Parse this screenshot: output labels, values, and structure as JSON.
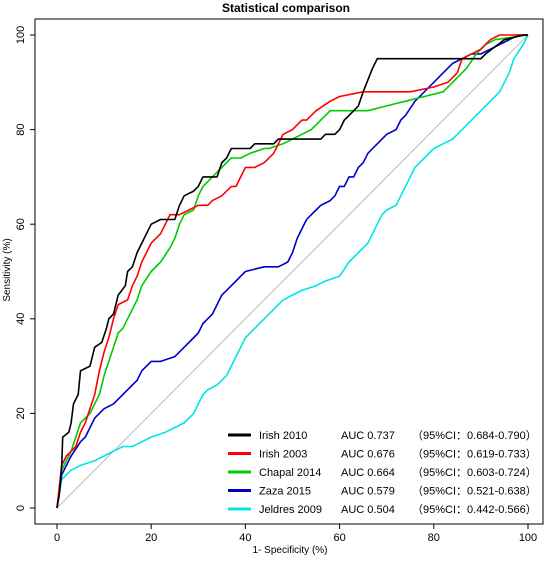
{
  "chart_data": {
    "type": "line",
    "title": "Statistical comparison",
    "xlabel": "1- Specificity (%)",
    "ylabel": "Sensitivity (%)",
    "xlim": [
      0,
      100
    ],
    "ylim": [
      0,
      100
    ],
    "xticks": [
      "0",
      "20",
      "40",
      "60",
      "80",
      "100"
    ],
    "yticks": [
      "0",
      "20",
      "40",
      "60",
      "80",
      "100"
    ],
    "grid": false,
    "legend_position": "bottom-right",
    "reference_line": {
      "from": [
        0,
        0
      ],
      "to": [
        100,
        100
      ],
      "color": "#bbbbbb"
    },
    "series": [
      {
        "name": "Irish 2010",
        "auc_text": "AUC 0.737",
        "ci_text": "（95%CI：0.684-0.790）",
        "color": "#000000",
        "points": [
          [
            0,
            0
          ],
          [
            0.5,
            3
          ],
          [
            1,
            9
          ],
          [
            1.2,
            15
          ],
          [
            2.5,
            16
          ],
          [
            3,
            18
          ],
          [
            3.5,
            22
          ],
          [
            4.5,
            24
          ],
          [
            5,
            29
          ],
          [
            7,
            30
          ],
          [
            8,
            34
          ],
          [
            9.5,
            35
          ],
          [
            10.5,
            38
          ],
          [
            11,
            40
          ],
          [
            12,
            41
          ],
          [
            13,
            45
          ],
          [
            14.5,
            47
          ],
          [
            15,
            50
          ],
          [
            16,
            51
          ],
          [
            17,
            54
          ],
          [
            18,
            56
          ],
          [
            19,
            58
          ],
          [
            20,
            60
          ],
          [
            22,
            61
          ],
          [
            25,
            61
          ],
          [
            26,
            64
          ],
          [
            27,
            66
          ],
          [
            29,
            67
          ],
          [
            30,
            68
          ],
          [
            31,
            70
          ],
          [
            34,
            70
          ],
          [
            35,
            73
          ],
          [
            36,
            74
          ],
          [
            37,
            76
          ],
          [
            41,
            76
          ],
          [
            42,
            77
          ],
          [
            46,
            77
          ],
          [
            47,
            78
          ],
          [
            56,
            78
          ],
          [
            57,
            79
          ],
          [
            59,
            79
          ],
          [
            60,
            80
          ],
          [
            61,
            82
          ],
          [
            62,
            83
          ],
          [
            63,
            84
          ],
          [
            64,
            85
          ],
          [
            65,
            88
          ],
          [
            67,
            93
          ],
          [
            68,
            95
          ],
          [
            90,
            95
          ],
          [
            91,
            96
          ],
          [
            95,
            99
          ],
          [
            99,
            100
          ],
          [
            100,
            100
          ]
        ]
      },
      {
        "name": "Irish 2003",
        "auc_text": "AUC 0.676",
        "ci_text": "（95%CI：0.619-0.733）",
        "color": "#ff0000",
        "points": [
          [
            0,
            0
          ],
          [
            1,
            9
          ],
          [
            2,
            11
          ],
          [
            4,
            13
          ],
          [
            5,
            16
          ],
          [
            6,
            18
          ],
          [
            8,
            24
          ],
          [
            9,
            29
          ],
          [
            10,
            33
          ],
          [
            11,
            36
          ],
          [
            12,
            40
          ],
          [
            13,
            43
          ],
          [
            15,
            44
          ],
          [
            16,
            47
          ],
          [
            17,
            49
          ],
          [
            18,
            52
          ],
          [
            19,
            54
          ],
          [
            20,
            56
          ],
          [
            22,
            58
          ],
          [
            23,
            60
          ],
          [
            24,
            62
          ],
          [
            26,
            62
          ],
          [
            28,
            63
          ],
          [
            30,
            64
          ],
          [
            32,
            64
          ],
          [
            33,
            65
          ],
          [
            35,
            66
          ],
          [
            37,
            68
          ],
          [
            38,
            68
          ],
          [
            40,
            72
          ],
          [
            42,
            72
          ],
          [
            44,
            73
          ],
          [
            46,
            75
          ],
          [
            47,
            77
          ],
          [
            48,
            79
          ],
          [
            50,
            80
          ],
          [
            52,
            82
          ],
          [
            53,
            82
          ],
          [
            55,
            84
          ],
          [
            58,
            86
          ],
          [
            60,
            87
          ],
          [
            65,
            88
          ],
          [
            70,
            88
          ],
          [
            75,
            88
          ],
          [
            80,
            89
          ],
          [
            83,
            90
          ],
          [
            85,
            92
          ],
          [
            86,
            95
          ],
          [
            88,
            96
          ],
          [
            90,
            97
          ],
          [
            92,
            99
          ],
          [
            94,
            100
          ],
          [
            100,
            100
          ]
        ]
      },
      {
        "name": "Chapal 2014",
        "auc_text": "AUC 0.664",
        "ci_text": "（95%CI：0.603-0.724）",
        "color": "#00cc00",
        "points": [
          [
            0,
            0
          ],
          [
            1,
            8
          ],
          [
            3,
            12
          ],
          [
            5,
            18
          ],
          [
            7,
            20
          ],
          [
            8,
            22
          ],
          [
            9,
            24
          ],
          [
            10,
            28
          ],
          [
            11,
            31
          ],
          [
            12,
            34
          ],
          [
            13,
            37
          ],
          [
            14,
            38
          ],
          [
            15,
            40
          ],
          [
            16,
            42
          ],
          [
            17,
            44
          ],
          [
            18,
            47
          ],
          [
            20,
            50
          ],
          [
            22,
            52
          ],
          [
            24,
            55
          ],
          [
            25,
            57
          ],
          [
            26,
            60
          ],
          [
            27,
            62
          ],
          [
            29,
            63
          ],
          [
            30,
            66
          ],
          [
            31,
            68
          ],
          [
            33,
            70
          ],
          [
            35,
            72
          ],
          [
            37,
            74
          ],
          [
            39,
            74
          ],
          [
            41,
            75
          ],
          [
            44,
            76
          ],
          [
            45,
            76
          ],
          [
            48,
            77
          ],
          [
            50,
            78
          ],
          [
            52,
            79
          ],
          [
            54,
            80
          ],
          [
            56,
            82
          ],
          [
            58,
            84
          ],
          [
            60,
            84
          ],
          [
            63,
            84
          ],
          [
            66,
            84
          ],
          [
            70,
            85
          ],
          [
            74,
            86
          ],
          [
            78,
            87
          ],
          [
            82,
            88
          ],
          [
            85,
            91
          ],
          [
            87,
            93
          ],
          [
            89,
            96
          ],
          [
            91,
            98
          ],
          [
            93,
            99
          ],
          [
            100,
            100
          ]
        ]
      },
      {
        "name": "Zaza 2015",
        "auc_text": "AUC 0.579",
        "ci_text": "（95%CI：0.521-0.638）",
        "color": "#0000cc",
        "points": [
          [
            0,
            0
          ],
          [
            1,
            7
          ],
          [
            3,
            11
          ],
          [
            5,
            14
          ],
          [
            6,
            15
          ],
          [
            7,
            17
          ],
          [
            8,
            19
          ],
          [
            9,
            20
          ],
          [
            10,
            21
          ],
          [
            12,
            22
          ],
          [
            13,
            23
          ],
          [
            14,
            24
          ],
          [
            15,
            25
          ],
          [
            16,
            26
          ],
          [
            17,
            27
          ],
          [
            18,
            29
          ],
          [
            19,
            30
          ],
          [
            20,
            31
          ],
          [
            22,
            31
          ],
          [
            25,
            32
          ],
          [
            26,
            33
          ],
          [
            27,
            34
          ],
          [
            28,
            35
          ],
          [
            30,
            37
          ],
          [
            31,
            39
          ],
          [
            32,
            40
          ],
          [
            33,
            41
          ],
          [
            34,
            43
          ],
          [
            35,
            45
          ],
          [
            36,
            46
          ],
          [
            37,
            47
          ],
          [
            38,
            48
          ],
          [
            39,
            49
          ],
          [
            40,
            50
          ],
          [
            44,
            51
          ],
          [
            47,
            51
          ],
          [
            49,
            52
          ],
          [
            50,
            54
          ],
          [
            51,
            57
          ],
          [
            52,
            59
          ],
          [
            53,
            61
          ],
          [
            54,
            62
          ],
          [
            55,
            63
          ],
          [
            56,
            64
          ],
          [
            58,
            65
          ],
          [
            59,
            66
          ],
          [
            60,
            68
          ],
          [
            61,
            68
          ],
          [
            62,
            70
          ],
          [
            63,
            70
          ],
          [
            64,
            72
          ],
          [
            65,
            73
          ],
          [
            66,
            75
          ],
          [
            67,
            76
          ],
          [
            68,
            77
          ],
          [
            69,
            78
          ],
          [
            70,
            79
          ],
          [
            72,
            80
          ],
          [
            73,
            82
          ],
          [
            74,
            83
          ],
          [
            76,
            86
          ],
          [
            78,
            88
          ],
          [
            79,
            89
          ],
          [
            80,
            90
          ],
          [
            82,
            92
          ],
          [
            84,
            94
          ],
          [
            86,
            95
          ],
          [
            88,
            96
          ],
          [
            90,
            96
          ],
          [
            92,
            97
          ],
          [
            94,
            98
          ],
          [
            96,
            99
          ],
          [
            98,
            100
          ],
          [
            100,
            100
          ]
        ]
      },
      {
        "name": "Jeldres 2009",
        "auc_text": "AUC 0.504",
        "ci_text": "（95%CI：0.442-0.566）",
        "color": "#00e5e5",
        "points": [
          [
            0,
            0
          ],
          [
            1,
            6
          ],
          [
            2,
            7
          ],
          [
            3,
            8
          ],
          [
            5,
            9
          ],
          [
            8,
            10
          ],
          [
            10,
            11
          ],
          [
            12,
            12
          ],
          [
            14,
            13
          ],
          [
            16,
            13
          ],
          [
            18,
            14
          ],
          [
            20,
            15
          ],
          [
            23,
            16
          ],
          [
            25,
            17
          ],
          [
            27,
            18
          ],
          [
            29,
            20
          ],
          [
            30,
            22
          ],
          [
            31,
            24
          ],
          [
            32,
            25
          ],
          [
            34,
            26
          ],
          [
            35,
            27
          ],
          [
            36,
            28
          ],
          [
            37,
            30
          ],
          [
            38,
            32
          ],
          [
            39,
            34
          ],
          [
            40,
            36
          ],
          [
            42,
            38
          ],
          [
            44,
            40
          ],
          [
            46,
            42
          ],
          [
            48,
            44
          ],
          [
            50,
            45
          ],
          [
            52,
            46
          ],
          [
            55,
            47
          ],
          [
            57,
            48
          ],
          [
            60,
            49
          ],
          [
            62,
            52
          ],
          [
            64,
            54
          ],
          [
            66,
            56
          ],
          [
            67,
            58
          ],
          [
            68,
            60
          ],
          [
            69,
            62
          ],
          [
            70,
            63
          ],
          [
            72,
            64
          ],
          [
            73,
            66
          ],
          [
            74,
            68
          ],
          [
            75,
            70
          ],
          [
            76,
            72
          ],
          [
            78,
            74
          ],
          [
            80,
            76
          ],
          [
            82,
            77
          ],
          [
            84,
            78
          ],
          [
            86,
            80
          ],
          [
            88,
            82
          ],
          [
            90,
            84
          ],
          [
            92,
            86
          ],
          [
            94,
            88
          ],
          [
            96,
            92
          ],
          [
            97,
            95
          ],
          [
            99,
            98
          ],
          [
            100,
            100
          ]
        ]
      }
    ]
  }
}
